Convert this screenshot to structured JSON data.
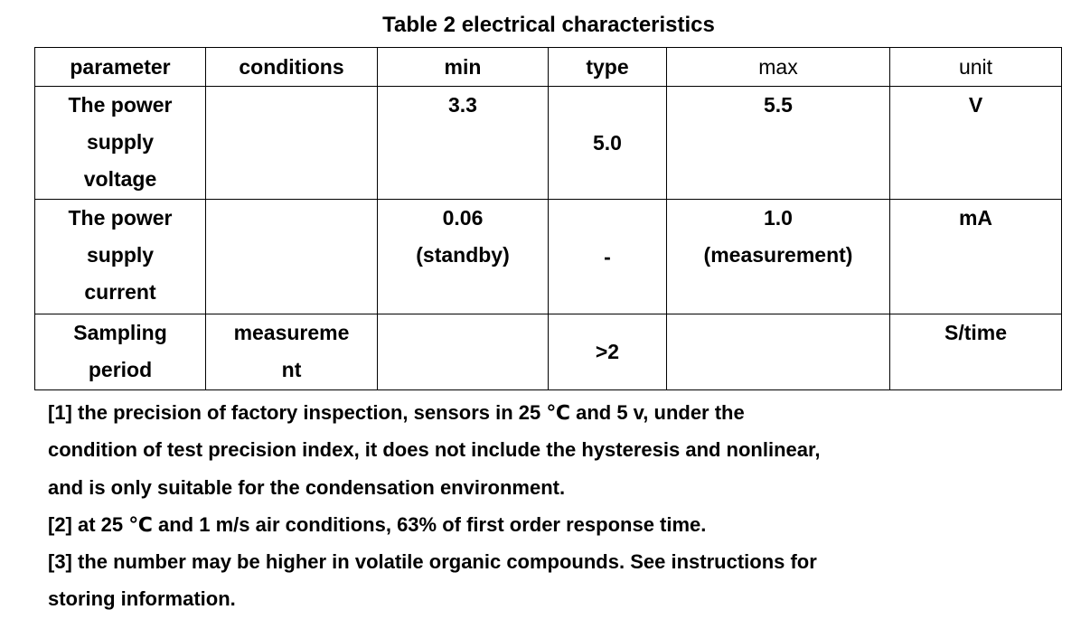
{
  "title": "Table 2 electrical characteristics",
  "table": {
    "header": [
      "parameter",
      "conditions",
      "min",
      "type",
      "max",
      "unit"
    ],
    "rows": [
      [
        "The power\nsupply\nvoltage",
        null,
        "3.3",
        "5.0",
        "5.5",
        "V"
      ],
      [
        "The power\nsupply\ncurrent",
        null,
        "0.06\n(standby)",
        "-",
        "1.0\n(measurement)",
        "mA"
      ],
      [
        "Sampling\nperiod",
        "measureme\nnt",
        null,
        ">2",
        null,
        "S/time"
      ]
    ]
  },
  "notes": [
    [
      "[1] the precision of factory inspection, sensors in 25 ℃ and 5 v, under the",
      "condition of test precision index, it does not include the hysteresis and nonlinear,",
      "and is only suitable for the condensation environment."
    ],
    [
      "[2] at 25 ℃ and 1 m/s air conditions, 63% of first order response time."
    ],
    [
      "[3] the number may be higher in volatile organic compounds. See instructions for",
      "storing information."
    ]
  ]
}
